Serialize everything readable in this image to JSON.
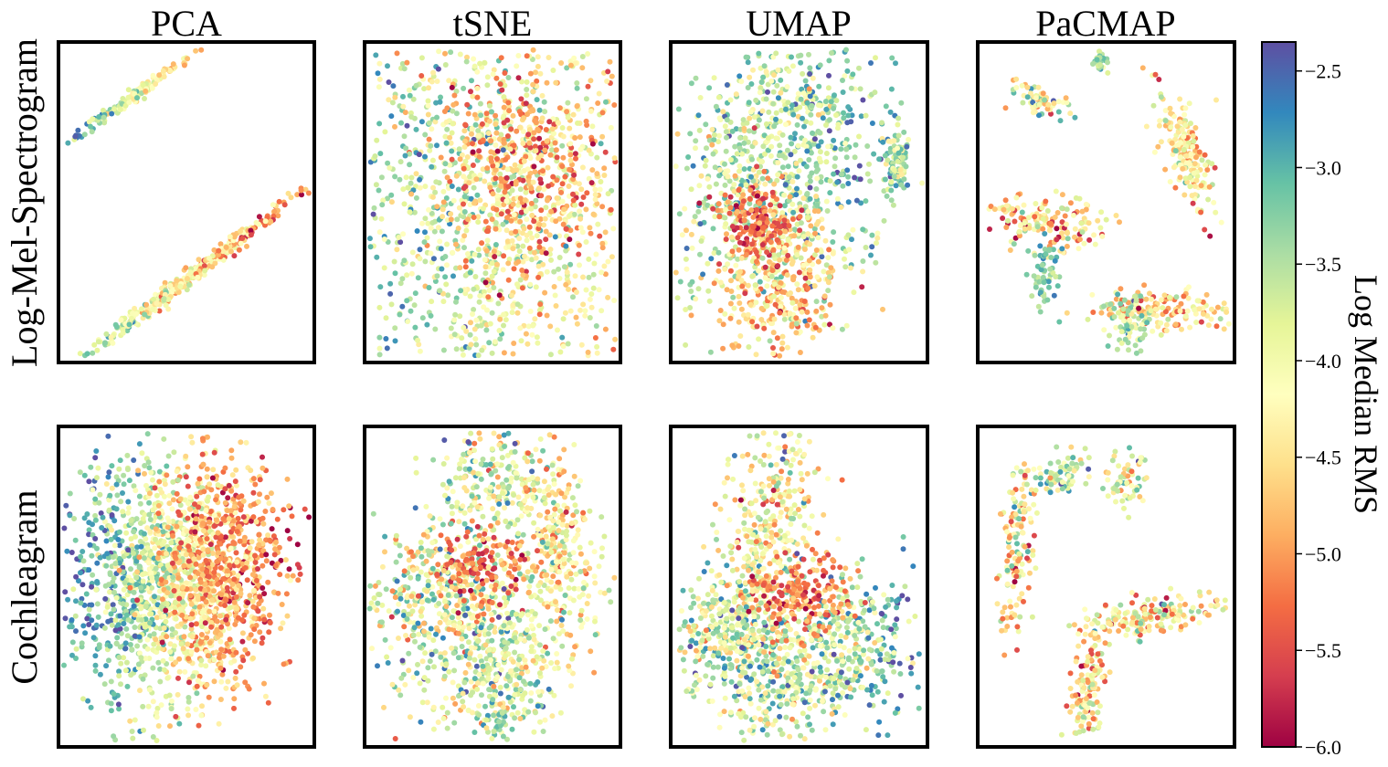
{
  "chart_data": {
    "type": "scatter",
    "columns": [
      "PCA",
      "tSNE",
      "UMAP",
      "PaCMAP"
    ],
    "rows": [
      "Log-Mel-Spectrogram",
      "Cochleagram"
    ],
    "axes_ticks": "none",
    "colormap": {
      "name": "Spectral",
      "label": "Log Median RMS",
      "range": [
        -6.0,
        -2.35
      ],
      "ticks": [
        -2.5,
        -3.0,
        -3.5,
        -4.0,
        -4.5,
        -5.0,
        -5.5,
        -6.0
      ],
      "tick_labels": [
        "−2.5",
        "−3.0",
        "−3.5",
        "−4.0",
        "−4.5",
        "−5.0",
        "−5.5",
        "−6.0"
      ],
      "stops": [
        "#9e0142",
        "#d53e4f",
        "#f46d43",
        "#fdae61",
        "#fee08b",
        "#ffffbf",
        "#e6f598",
        "#abdda4",
        "#66c2a5",
        "#3288bd",
        "#5e4fa2"
      ]
    },
    "panels": [
      {
        "row": 0,
        "col": 0,
        "embedding": "PCA",
        "clusters": [
          {
            "x": 0.5,
            "y": 0.74,
            "sx": 0.25,
            "sy": 0.013,
            "angle": -0.55,
            "n": 360,
            "v": -4.3,
            "vsd": 0.5,
            "vgrad": -0.8
          },
          {
            "x": 0.29,
            "y": 0.17,
            "sx": 0.14,
            "sy": 0.009,
            "angle": -0.52,
            "n": 160,
            "v": -3.9,
            "vsd": 0.4,
            "vgrad": -0.9
          },
          {
            "x": 0.07,
            "y": 0.29,
            "sx": 0.01,
            "sy": 0.005,
            "angle": 0,
            "n": 3,
            "v": -2.6,
            "vsd": 0.1,
            "vgrad": 0
          }
        ]
      },
      {
        "row": 0,
        "col": 1,
        "embedding": "tSNE",
        "clusters": [
          {
            "x": 0.5,
            "y": 0.5,
            "sx": 0.32,
            "sy": 0.34,
            "angle": 0,
            "n": 1500,
            "v": -3.9,
            "vsd": 0.55,
            "vgrad": -0.6
          },
          {
            "x": 0.6,
            "y": 0.38,
            "sx": 0.18,
            "sy": 0.16,
            "angle": 0,
            "n": 380,
            "v": -5.0,
            "vsd": 0.45,
            "vgrad": 0
          }
        ]
      },
      {
        "row": 0,
        "col": 2,
        "embedding": "UMAP",
        "clusters": [
          {
            "x": 0.3,
            "y": 0.42,
            "sx": 0.13,
            "sy": 0.22,
            "angle": 0.2,
            "n": 450,
            "v": -3.6,
            "vsd": 0.5,
            "vgrad": 0
          },
          {
            "x": 0.55,
            "y": 0.32,
            "sx": 0.16,
            "sy": 0.22,
            "angle": -0.1,
            "n": 450,
            "v": -3.5,
            "vsd": 0.55,
            "vgrad": 0.5
          },
          {
            "x": 0.42,
            "y": 0.75,
            "sx": 0.12,
            "sy": 0.12,
            "angle": 0.5,
            "n": 350,
            "v": -4.6,
            "vsd": 0.5,
            "vgrad": 0
          },
          {
            "x": 0.33,
            "y": 0.56,
            "sx": 0.07,
            "sy": 0.06,
            "angle": 0,
            "n": 160,
            "v": -5.3,
            "vsd": 0.3,
            "vgrad": 0
          },
          {
            "x": 0.88,
            "y": 0.38,
            "sx": 0.03,
            "sy": 0.05,
            "angle": 0,
            "n": 90,
            "v": -3.6,
            "vsd": 0.5,
            "vgrad": 0
          }
        ]
      },
      {
        "row": 0,
        "col": 3,
        "embedding": "PaCMAP",
        "clusters": [
          {
            "x": 0.48,
            "y": 0.07,
            "sx": 0.02,
            "sy": 0.015,
            "angle": 0,
            "n": 25,
            "v": -3.4,
            "vsd": 0.3,
            "vgrad": 0
          },
          {
            "x": 0.24,
            "y": 0.18,
            "sx": 0.05,
            "sy": 0.02,
            "angle": 0.3,
            "n": 70,
            "v": -4.0,
            "vsd": 0.6,
            "vgrad": 0
          },
          {
            "x": 0.81,
            "y": 0.34,
            "sx": 0.04,
            "sy": 0.11,
            "angle": -0.4,
            "n": 180,
            "v": -4.4,
            "vsd": 0.5,
            "vgrad": 0
          },
          {
            "x": 0.26,
            "y": 0.56,
            "sx": 0.12,
            "sy": 0.04,
            "angle": 0.1,
            "n": 160,
            "v": -4.6,
            "vsd": 0.6,
            "vgrad": 0
          },
          {
            "x": 0.26,
            "y": 0.73,
            "sx": 0.03,
            "sy": 0.06,
            "angle": 0,
            "n": 60,
            "v": -3.2,
            "vsd": 0.3,
            "vgrad": 0
          },
          {
            "x": 0.73,
            "y": 0.84,
            "sx": 0.13,
            "sy": 0.03,
            "angle": 0,
            "n": 150,
            "v": -4.6,
            "vsd": 0.6,
            "vgrad": 0
          },
          {
            "x": 0.6,
            "y": 0.87,
            "sx": 0.05,
            "sy": 0.05,
            "angle": 0,
            "n": 70,
            "v": -3.6,
            "vsd": 0.4,
            "vgrad": 0
          }
        ]
      },
      {
        "row": 1,
        "col": 0,
        "embedding": "PCA",
        "clusters": [
          {
            "x": 0.42,
            "y": 0.48,
            "sx": 0.2,
            "sy": 0.19,
            "angle": 0,
            "n": 1500,
            "v": -3.9,
            "vsd": 0.5,
            "vgrad": -1.3
          },
          {
            "x": 0.62,
            "y": 0.42,
            "sx": 0.13,
            "sy": 0.16,
            "angle": 0,
            "n": 450,
            "v": -5.0,
            "vsd": 0.4,
            "vgrad": 0
          }
        ]
      },
      {
        "row": 1,
        "col": 1,
        "embedding": "tSNE",
        "clusters": [
          {
            "x": 0.3,
            "y": 0.55,
            "sx": 0.16,
            "sy": 0.15,
            "angle": 0,
            "n": 500,
            "v": -3.9,
            "vsd": 0.7,
            "vgrad": 0
          },
          {
            "x": 0.5,
            "y": 0.17,
            "sx": 0.1,
            "sy": 0.08,
            "angle": 0.3,
            "n": 200,
            "v": -3.8,
            "vsd": 0.6,
            "vgrad": 0
          },
          {
            "x": 0.76,
            "y": 0.38,
            "sx": 0.07,
            "sy": 0.15,
            "angle": -0.2,
            "n": 300,
            "v": -4.3,
            "vsd": 0.6,
            "vgrad": 0
          },
          {
            "x": 0.55,
            "y": 0.75,
            "sx": 0.1,
            "sy": 0.12,
            "angle": 0,
            "n": 350,
            "v": -3.8,
            "vsd": 0.55,
            "vgrad": 0
          },
          {
            "x": 0.45,
            "y": 0.44,
            "sx": 0.1,
            "sy": 0.06,
            "angle": 0,
            "n": 160,
            "v": -5.2,
            "vsd": 0.4,
            "vgrad": 0
          },
          {
            "x": 0.53,
            "y": 0.92,
            "sx": 0.015,
            "sy": 0.02,
            "angle": 0,
            "n": 20,
            "v": -3.2,
            "vsd": 0.2,
            "vgrad": 0
          }
        ]
      },
      {
        "row": 1,
        "col": 2,
        "embedding": "UMAP",
        "clusters": [
          {
            "x": 0.38,
            "y": 0.32,
            "sx": 0.09,
            "sy": 0.2,
            "angle": 0.2,
            "n": 400,
            "v": -4.2,
            "vsd": 0.6,
            "vgrad": 0
          },
          {
            "x": 0.2,
            "y": 0.65,
            "sx": 0.11,
            "sy": 0.1,
            "angle": 0,
            "n": 300,
            "v": -3.8,
            "vsd": 0.6,
            "vgrad": 0
          },
          {
            "x": 0.43,
            "y": 0.8,
            "sx": 0.12,
            "sy": 0.1,
            "angle": 0,
            "n": 300,
            "v": -3.6,
            "vsd": 0.55,
            "vgrad": 0
          },
          {
            "x": 0.7,
            "y": 0.68,
            "sx": 0.14,
            "sy": 0.12,
            "angle": 0,
            "n": 350,
            "v": -3.5,
            "vsd": 0.6,
            "vgrad": 0.6
          },
          {
            "x": 0.5,
            "y": 0.52,
            "sx": 0.1,
            "sy": 0.06,
            "angle": 0,
            "n": 200,
            "v": -5.2,
            "vsd": 0.35,
            "vgrad": 0
          }
        ]
      },
      {
        "row": 1,
        "col": 3,
        "embedding": "PaCMAP",
        "clusters": [
          {
            "x": 0.16,
            "y": 0.38,
            "sx": 0.03,
            "sy": 0.15,
            "angle": 0.1,
            "n": 140,
            "v": -4.4,
            "vsd": 0.7,
            "vgrad": 0
          },
          {
            "x": 0.33,
            "y": 0.15,
            "sx": 0.06,
            "sy": 0.03,
            "angle": -0.4,
            "n": 70,
            "v": -3.6,
            "vsd": 0.6,
            "vgrad": 0
          },
          {
            "x": 0.59,
            "y": 0.16,
            "sx": 0.04,
            "sy": 0.05,
            "angle": 0.5,
            "n": 60,
            "v": -4.0,
            "vsd": 0.6,
            "vgrad": 0
          },
          {
            "x": 0.43,
            "y": 0.8,
            "sx": 0.03,
            "sy": 0.11,
            "angle": 0.15,
            "n": 150,
            "v": -4.5,
            "vsd": 0.6,
            "vgrad": 0
          },
          {
            "x": 0.7,
            "y": 0.59,
            "sx": 0.15,
            "sy": 0.03,
            "angle": -0.1,
            "n": 180,
            "v": -4.3,
            "vsd": 0.7,
            "vgrad": 0
          }
        ]
      }
    ]
  }
}
